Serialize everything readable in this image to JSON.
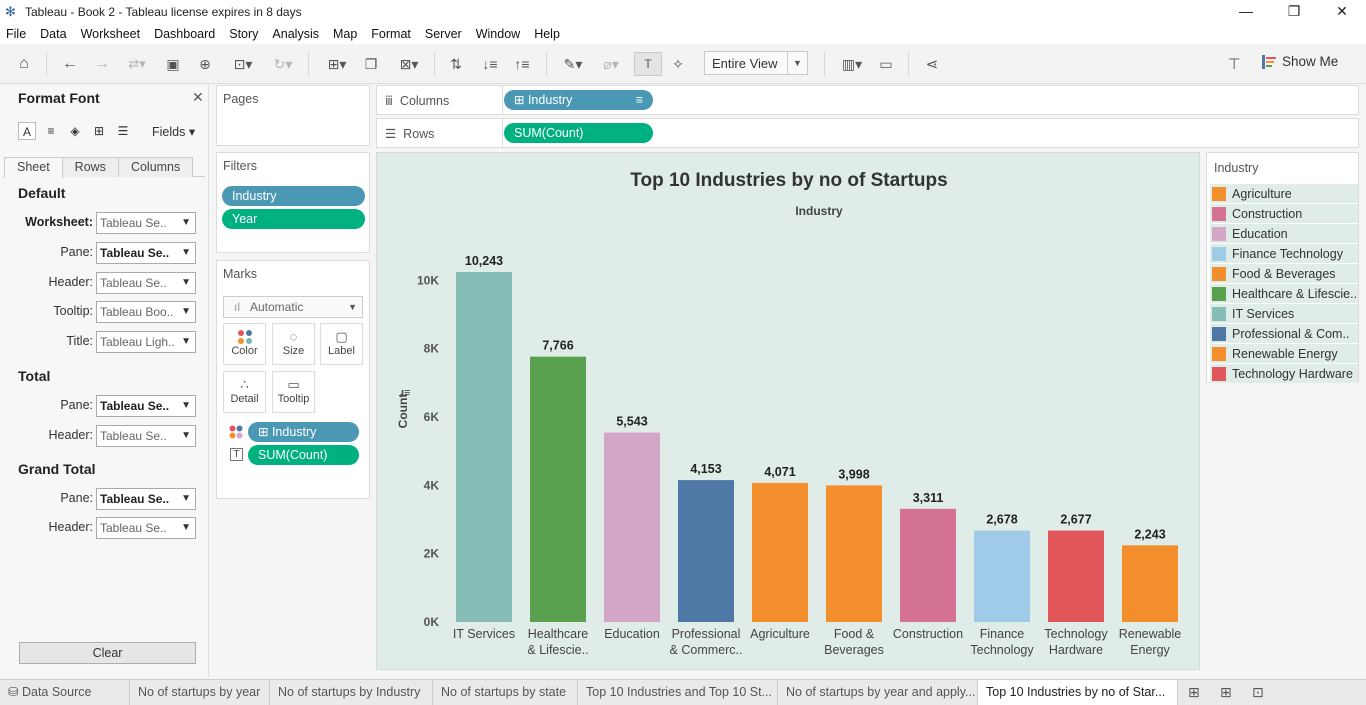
{
  "window": {
    "title": "Tableau - Book 2 - Tableau license expires in 8 days",
    "controls": [
      "—",
      "❐",
      "✕"
    ]
  },
  "menu": [
    "File",
    "Data",
    "Worksheet",
    "Dashboard",
    "Story",
    "Analysis",
    "Map",
    "Format",
    "Server",
    "Window",
    "Help"
  ],
  "toolbar": {
    "fit_select": "Entire View",
    "show_me_label": "Show Me"
  },
  "format_panel": {
    "title": "Format Font",
    "fields_label": "Fields",
    "tabs": [
      "Sheet",
      "Rows",
      "Columns"
    ],
    "default_heading": "Default",
    "total_heading": "Total",
    "grand_total_heading": "Grand Total",
    "default_rows": [
      {
        "label": "Worksheet:",
        "value": "Tableau Se.."
      },
      {
        "label": "Pane:",
        "value": "Tableau Se.."
      },
      {
        "label": "Header:",
        "value": "Tableau Se.."
      },
      {
        "label": "Tooltip:",
        "value": "Tableau Boo.."
      },
      {
        "label": "Title:",
        "value": "Tableau Ligh.."
      }
    ],
    "total_rows": [
      {
        "label": "Pane:",
        "value": "Tableau Se.."
      },
      {
        "label": "Header:",
        "value": "Tableau Se.."
      }
    ],
    "grand_total_rows": [
      {
        "label": "Pane:",
        "value": "Tableau Se.."
      },
      {
        "label": "Header:",
        "value": "Tableau Se.."
      }
    ],
    "clear_label": "Clear"
  },
  "pages": {
    "title": "Pages"
  },
  "filters": {
    "title": "Filters",
    "pills": [
      "Industry",
      "Year"
    ]
  },
  "marks": {
    "title": "Marks",
    "type": "Automatic",
    "buttons": [
      "Color",
      "Size",
      "Label",
      "Detail",
      "Tooltip"
    ],
    "color_pill": "Industry",
    "label_pill": "SUM(Count)"
  },
  "shelves": {
    "columns_label": "Columns",
    "columns_pill": "Industry",
    "rows_label": "Rows",
    "rows_pill": "SUM(Count)"
  },
  "legend": {
    "title": "Industry",
    "items": [
      {
        "label": "Agriculture",
        "color": "#f28e2b"
      },
      {
        "label": "Construction",
        "color": "#d37295"
      },
      {
        "label": "Education",
        "color": "#d4a6c8"
      },
      {
        "label": "Finance Technology",
        "color": "#a0cbe8"
      },
      {
        "label": "Food & Beverages",
        "color": "#f28e2b"
      },
      {
        "label": "Healthcare & Lifescie..",
        "color": "#59a14f"
      },
      {
        "label": "IT Services",
        "color": "#86bcb6"
      },
      {
        "label": "Professional & Com..",
        "color": "#4e79a7"
      },
      {
        "label": "Renewable Energy",
        "color": "#f28e2b"
      },
      {
        "label": "Technology Hardware",
        "color": "#e15759"
      }
    ]
  },
  "chart_data": {
    "type": "bar",
    "title": "Top 10 Industries by no of Startups",
    "header": "Industry",
    "ylabel": "Count",
    "ylim": [
      0,
      10800
    ],
    "yticks": [
      0,
      2000,
      4000,
      6000,
      8000,
      10000
    ],
    "ytick_labels": [
      "0K",
      "2K",
      "4K",
      "6K",
      "8K",
      "10K"
    ],
    "grid": false,
    "categories": [
      [
        "IT Services"
      ],
      [
        "Healthcare",
        "& Lifescie.."
      ],
      [
        "Education"
      ],
      [
        "Professional",
        "& Commerc.."
      ],
      [
        "Agriculture"
      ],
      [
        "Food &",
        "Beverages"
      ],
      [
        "Construction"
      ],
      [
        "Finance",
        "Technology"
      ],
      [
        "Technology",
        "Hardware"
      ],
      [
        "Renewable",
        "Energy"
      ]
    ],
    "values": [
      10243,
      7766,
      5543,
      4153,
      4071,
      3998,
      3311,
      2678,
      2677,
      2243
    ],
    "value_labels": [
      "10,243",
      "7,766",
      "5,543",
      "4,153",
      "4,071",
      "3,998",
      "3,311",
      "2,678",
      "2,677",
      "2,243"
    ],
    "colors": [
      "#86bcb6",
      "#59a14f",
      "#d4a6c8",
      "#4e79a7",
      "#f28e2b",
      "#f28e2b",
      "#d37295",
      "#a0cbe8",
      "#e15759",
      "#f28e2b"
    ]
  },
  "sheet_tabs": [
    {
      "label": "Data Source",
      "active": false
    },
    {
      "label": "No of startups by year",
      "active": false
    },
    {
      "label": "No of startups by Industry",
      "active": false
    },
    {
      "label": "No of startups by state",
      "active": false
    },
    {
      "label": "Top 10 Industries and Top 10 St...",
      "active": false
    },
    {
      "label": "No of startups by year and apply...",
      "active": false
    },
    {
      "label": "Top 10 Industries by no of Star...",
      "active": true
    }
  ]
}
